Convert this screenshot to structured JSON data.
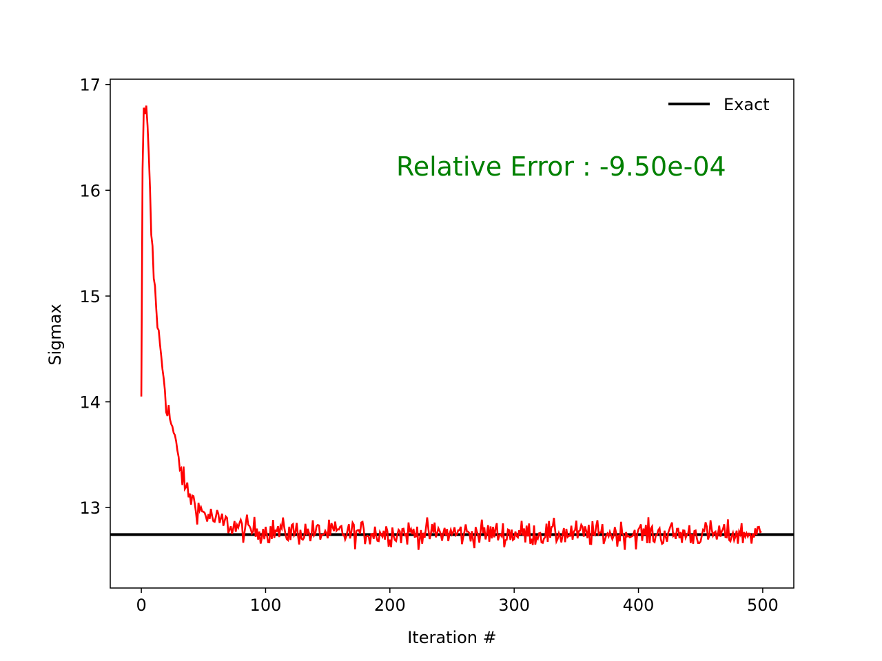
{
  "chart_data": {
    "type": "line",
    "title": "",
    "xlabel": "Iteration #",
    "ylabel": "Sigmax",
    "xlim": [
      -25,
      525
    ],
    "ylim": [
      12.24,
      17.05
    ],
    "x_ticks": [
      0,
      100,
      200,
      300,
      400,
      500
    ],
    "y_ticks": [
      13,
      14,
      15,
      16,
      17
    ],
    "grid": false,
    "legend": {
      "placement": "top-right",
      "entries": [
        "Exact"
      ]
    },
    "annotation": {
      "text": "Relative Error : -9.50e-04",
      "color": "#008000"
    },
    "series": [
      {
        "name": "Exact",
        "color": "#000000",
        "style": "horizontal",
        "value": 12.745
      },
      {
        "color": "#ff0000",
        "style": "noisy-decay",
        "x_range": [
          0,
          499
        ],
        "points": [
          [
            0,
            14.05
          ],
          [
            1,
            16.2
          ],
          [
            2,
            16.78
          ],
          [
            3,
            16.72
          ],
          [
            4,
            16.8
          ],
          [
            6,
            16.3
          ],
          [
            8,
            15.6
          ],
          [
            10,
            15.2
          ],
          [
            12,
            14.9
          ],
          [
            15,
            14.5
          ],
          [
            18,
            14.25
          ],
          [
            20,
            14.0
          ],
          [
            25,
            13.75
          ],
          [
            30,
            13.45
          ],
          [
            35,
            13.2
          ],
          [
            40,
            13.1
          ],
          [
            45,
            13.0
          ],
          [
            50,
            12.95
          ],
          [
            60,
            12.88
          ],
          [
            70,
            12.84
          ],
          [
            80,
            12.8
          ],
          [
            100,
            12.78
          ],
          [
            150,
            12.76
          ],
          [
            499,
            12.75
          ]
        ],
        "noise_amplitude": 0.12
      }
    ]
  }
}
